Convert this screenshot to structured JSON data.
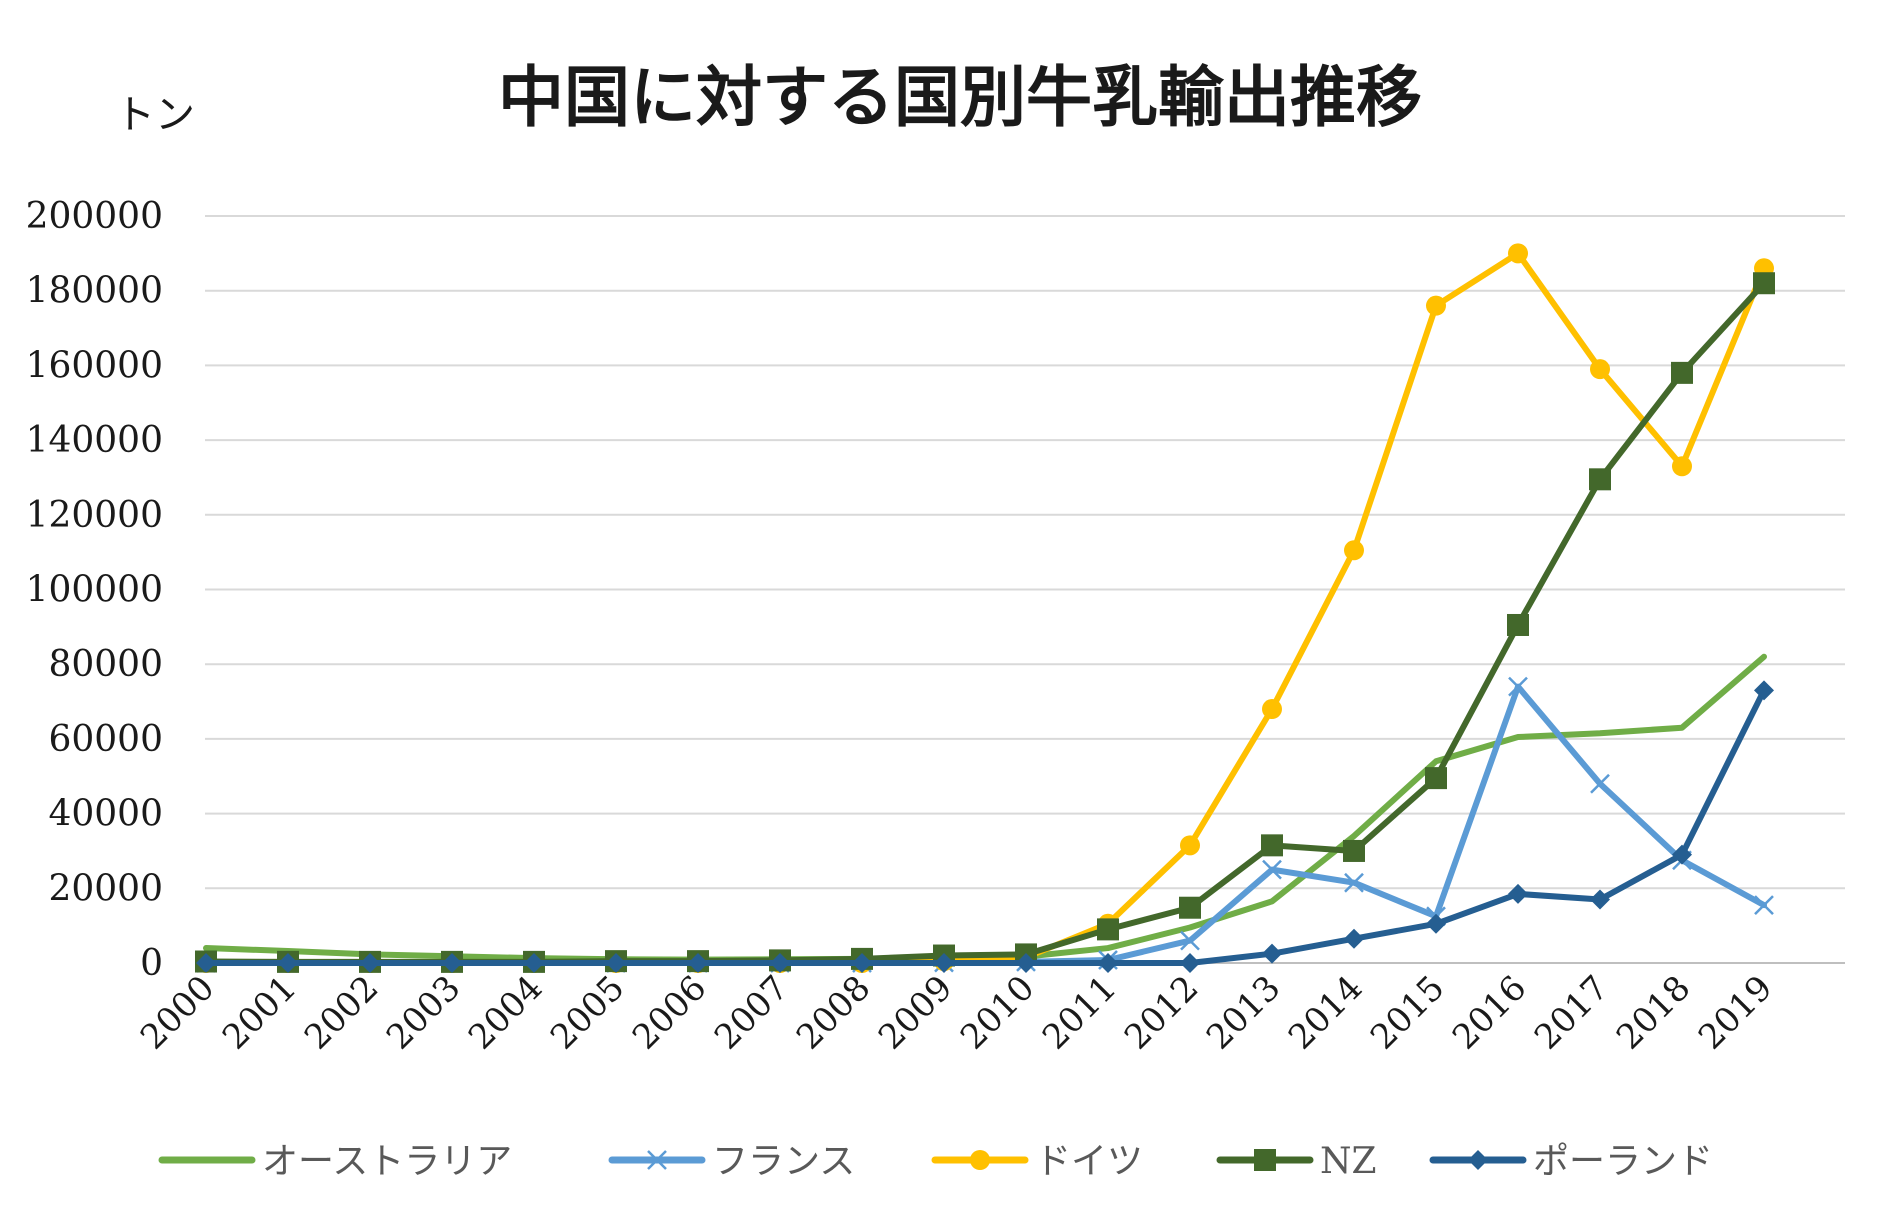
{
  "chart_data": {
    "type": "line",
    "title": "中国に対する国別牛乳輸出推移",
    "ylabel": "トン",
    "xlabel": "",
    "ylim": [
      0,
      200000
    ],
    "yticks": [
      "0",
      "20000",
      "40000",
      "60000",
      "80000",
      "100000",
      "120000",
      "140000",
      "160000",
      "180000",
      "200000"
    ],
    "categories": [
      "2000",
      "2001",
      "2002",
      "2003",
      "2004",
      "2005",
      "2006",
      "2007",
      "2008",
      "2009",
      "2010",
      "2011",
      "2012",
      "2013",
      "2014",
      "2015",
      "2016",
      "2017",
      "2018",
      "2019"
    ],
    "grid": true,
    "legend_position": "bottom",
    "series": [
      {
        "name": "オーストラリア",
        "color": "#70AD47",
        "marker": "none",
        "values": [
          4000,
          3200,
          2300,
          1800,
          1300,
          1000,
          900,
          1000,
          1100,
          1300,
          1700,
          4000,
          9500,
          16500,
          34000,
          54000,
          60500,
          61500,
          63000,
          82000
        ]
      },
      {
        "name": "フランス",
        "color": "#5B9BD5",
        "marker": "x",
        "values": [
          0,
          0,
          0,
          0,
          0,
          0,
          0,
          0,
          0,
          100,
          300,
          800,
          6000,
          25000,
          21500,
          12500,
          74000,
          48000,
          27500,
          15500
        ]
      },
      {
        "name": "ドイツ",
        "color": "#FFC000",
        "marker": "circle",
        "values": [
          0,
          0,
          0,
          0,
          0,
          0,
          0,
          0,
          0,
          500,
          1500,
          10500,
          31500,
          68000,
          110500,
          176000,
          190000,
          159000,
          133000,
          186000
        ]
      },
      {
        "name": "NZ",
        "color": "#43682B",
        "marker": "square",
        "values": [
          400,
          300,
          300,
          300,
          300,
          500,
          500,
          700,
          1100,
          2000,
          2300,
          9000,
          14800,
          31500,
          30000,
          49500,
          90500,
          129500,
          158000,
          182000
        ]
      },
      {
        "name": "ポーランド",
        "color": "#255E91",
        "marker": "diamond",
        "values": [
          0,
          0,
          0,
          0,
          0,
          0,
          0,
          0,
          0,
          0,
          0,
          0,
          0,
          2500,
          6500,
          10500,
          18500,
          17000,
          29000,
          73000
        ]
      }
    ]
  }
}
